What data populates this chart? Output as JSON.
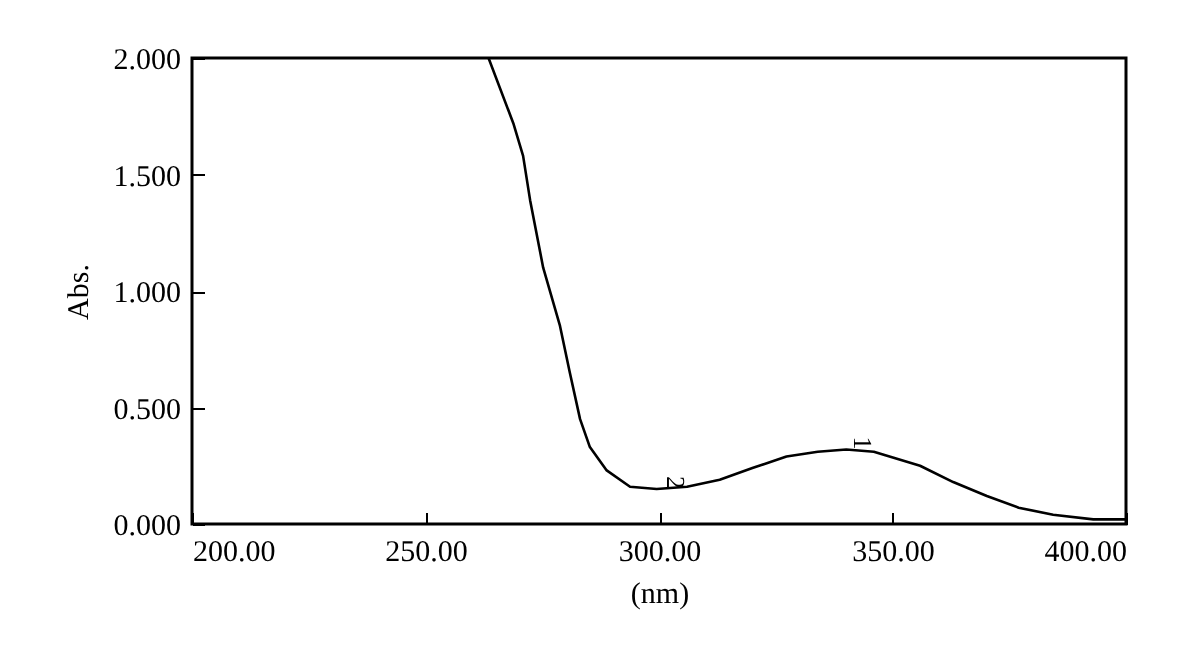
{
  "chart_data": {
    "type": "line",
    "xlabel": "(nm)",
    "ylabel": "Abs.",
    "series": [
      {
        "color": "#000000",
        "x": [
          263.5,
          268.8,
          270.9,
          272.4,
          275.2,
          278.8,
          280.9,
          283.1,
          285.2,
          288.8,
          293.8,
          299.5,
          306,
          313,
          320,
          327.3,
          334,
          340.1,
          346,
          355.9,
          363,
          370.2,
          377,
          384.4,
          393,
          400
        ],
        "values": [
          2.0,
          1.72,
          1.58,
          1.39,
          1.1,
          0.85,
          0.65,
          0.45,
          0.33,
          0.23,
          0.16,
          0.15,
          0.16,
          0.19,
          0.24,
          0.29,
          0.31,
          0.32,
          0.31,
          0.25,
          0.18,
          0.12,
          0.07,
          0.04,
          0.02,
          0.02
        ]
      }
    ],
    "annotations": [
      {
        "text": "1",
        "x": 340,
        "y": 0.32
      },
      {
        "text": "2",
        "x": 300,
        "y": 0.15
      }
    ],
    "xlim": [
      200,
      400
    ],
    "ylim": [
      0,
      2
    ],
    "xticks": [
      {
        "value": 200,
        "label": "200.00"
      },
      {
        "value": 250,
        "label": "250.00"
      },
      {
        "value": 300,
        "label": "300.00"
      },
      {
        "value": 350,
        "label": "350.00"
      },
      {
        "value": 400,
        "label": "400.00"
      }
    ],
    "yticks": [
      {
        "value": 0,
        "label": "0.000"
      },
      {
        "value": 0.5,
        "label": "0.500"
      },
      {
        "value": 1,
        "label": "1.000"
      },
      {
        "value": 1.5,
        "label": "1.500"
      },
      {
        "value": 2,
        "label": "2.000"
      }
    ],
    "grid": false,
    "marker": "none",
    "line_style": "solid"
  }
}
